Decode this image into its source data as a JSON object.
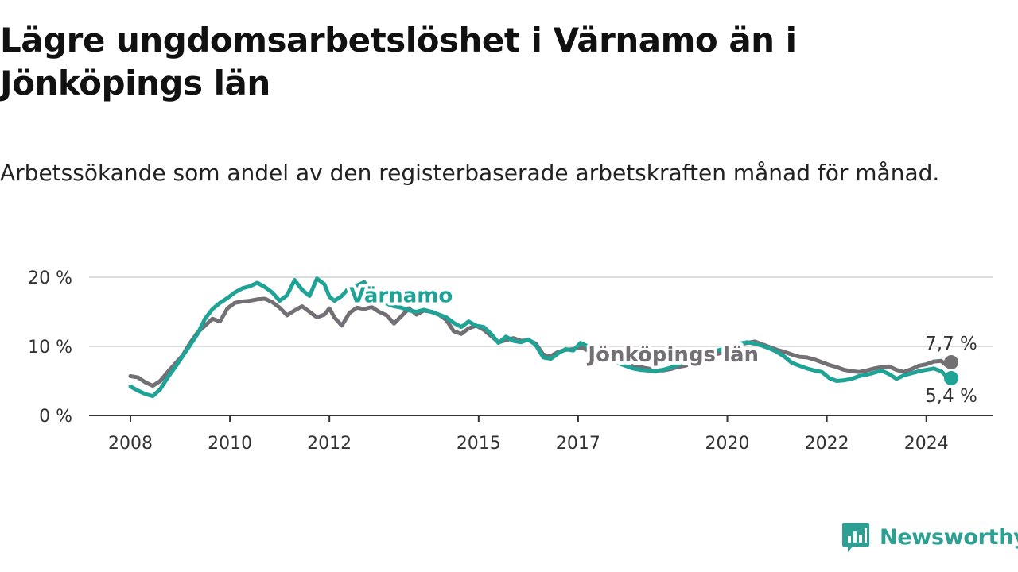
{
  "title": "Lägre ungdomsarbetslöshet i Värnamo än i Jönköpings län",
  "subtitle": "Arbetssökande som andel av den registerbaserade arbetskraften månad för månad.",
  "brand": {
    "name": "Newsworthy",
    "icon": "newsworthy-logo-icon",
    "color": "#2d9f93"
  },
  "chart_data": {
    "type": "line",
    "title": "Lägre ungdomsarbetslöshet i Värnamo än i Jönköpings län",
    "xlabel": "",
    "ylabel": "",
    "xlim": [
      2008,
      2024.5
    ],
    "ylim": [
      0,
      20
    ],
    "grid": true,
    "x_ticks": [
      {
        "value": 2008,
        "label": "2008"
      },
      {
        "value": 2010,
        "label": "2010"
      },
      {
        "value": 2012,
        "label": "2012"
      },
      {
        "value": 2015,
        "label": "2015"
      },
      {
        "value": 2017,
        "label": "2017"
      },
      {
        "value": 2020,
        "label": "2020"
      },
      {
        "value": 2022,
        "label": "2022"
      },
      {
        "value": 2024,
        "label": "2024"
      }
    ],
    "y_ticks": [
      {
        "value": 0,
        "label": "0 %"
      },
      {
        "value": 10,
        "label": "10 %"
      },
      {
        "value": 20,
        "label": "20 %"
      }
    ],
    "series": [
      {
        "name": "Jönköpings län",
        "label": "Jönköpings län",
        "color": "#727075",
        "label_anchor": {
          "x": 2017.2,
          "y": 7.8
        },
        "end_label": "7,7 %",
        "points": [
          [
            2008.0,
            5.7
          ],
          [
            2008.15,
            5.5
          ],
          [
            2008.3,
            4.8
          ],
          [
            2008.45,
            4.3
          ],
          [
            2008.6,
            5.0
          ],
          [
            2008.75,
            6.3
          ],
          [
            2008.9,
            7.5
          ],
          [
            2009.05,
            8.7
          ],
          [
            2009.2,
            10.5
          ],
          [
            2009.35,
            12.0
          ],
          [
            2009.5,
            13.0
          ],
          [
            2009.65,
            14.0
          ],
          [
            2009.8,
            13.6
          ],
          [
            2009.95,
            15.5
          ],
          [
            2010.1,
            16.3
          ],
          [
            2010.25,
            16.5
          ],
          [
            2010.4,
            16.6
          ],
          [
            2010.55,
            16.8
          ],
          [
            2010.7,
            16.9
          ],
          [
            2010.85,
            16.4
          ],
          [
            2011.0,
            15.6
          ],
          [
            2011.15,
            14.5
          ],
          [
            2011.3,
            15.2
          ],
          [
            2011.45,
            15.8
          ],
          [
            2011.6,
            15.0
          ],
          [
            2011.75,
            14.2
          ],
          [
            2011.9,
            14.6
          ],
          [
            2012.0,
            15.5
          ],
          [
            2012.1,
            14.2
          ],
          [
            2012.25,
            13.0
          ],
          [
            2012.4,
            14.8
          ],
          [
            2012.55,
            15.6
          ],
          [
            2012.7,
            15.4
          ],
          [
            2012.85,
            15.7
          ],
          [
            2013.0,
            15.0
          ],
          [
            2013.15,
            14.5
          ],
          [
            2013.3,
            13.3
          ],
          [
            2013.45,
            14.4
          ],
          [
            2013.6,
            15.5
          ],
          [
            2013.75,
            14.6
          ],
          [
            2013.9,
            15.2
          ],
          [
            2014.05,
            15.0
          ],
          [
            2014.2,
            14.6
          ],
          [
            2014.35,
            13.8
          ],
          [
            2014.5,
            12.2
          ],
          [
            2014.65,
            11.8
          ],
          [
            2014.8,
            12.6
          ],
          [
            2014.95,
            13.0
          ],
          [
            2015.1,
            12.4
          ],
          [
            2015.25,
            11.5
          ],
          [
            2015.4,
            10.6
          ],
          [
            2015.55,
            10.9
          ],
          [
            2015.7,
            11.2
          ],
          [
            2015.85,
            10.8
          ],
          [
            2016.0,
            10.9
          ],
          [
            2016.15,
            10.4
          ],
          [
            2016.3,
            8.8
          ],
          [
            2016.45,
            8.6
          ],
          [
            2016.6,
            9.2
          ],
          [
            2016.75,
            9.5
          ],
          [
            2016.9,
            9.6
          ],
          [
            2017.05,
            9.9
          ],
          [
            2017.2,
            9.4
          ],
          [
            2017.35,
            9.2
          ],
          [
            2017.5,
            9.0
          ],
          [
            2017.65,
            8.6
          ],
          [
            2017.8,
            8.2
          ],
          [
            2017.95,
            7.8
          ],
          [
            2018.1,
            7.4
          ],
          [
            2018.25,
            7.0
          ],
          [
            2018.4,
            6.8
          ],
          [
            2018.55,
            6.6
          ],
          [
            2018.7,
            6.5
          ],
          [
            2018.85,
            6.7
          ],
          [
            2019.0,
            7.0
          ],
          [
            2019.15,
            7.2
          ],
          [
            2019.3,
            7.6
          ],
          [
            2019.45,
            8.0
          ],
          [
            2019.6,
            8.4
          ],
          [
            2019.75,
            8.8
          ],
          [
            2019.9,
            9.1
          ],
          [
            2020.1,
            9.6
          ],
          [
            2020.25,
            10.3
          ],
          [
            2020.4,
            10.5
          ],
          [
            2020.55,
            10.7
          ],
          [
            2020.7,
            10.3
          ],
          [
            2020.85,
            9.9
          ],
          [
            2021.0,
            9.5
          ],
          [
            2021.15,
            9.2
          ],
          [
            2021.3,
            8.8
          ],
          [
            2021.45,
            8.5
          ],
          [
            2021.6,
            8.4
          ],
          [
            2021.75,
            8.1
          ],
          [
            2021.9,
            7.7
          ],
          [
            2022.05,
            7.3
          ],
          [
            2022.2,
            7.0
          ],
          [
            2022.35,
            6.6
          ],
          [
            2022.5,
            6.4
          ],
          [
            2022.65,
            6.3
          ],
          [
            2022.8,
            6.5
          ],
          [
            2022.95,
            6.8
          ],
          [
            2023.1,
            7.0
          ],
          [
            2023.25,
            7.1
          ],
          [
            2023.4,
            6.6
          ],
          [
            2023.55,
            6.3
          ],
          [
            2023.7,
            6.7
          ],
          [
            2023.85,
            7.2
          ],
          [
            2024.0,
            7.4
          ],
          [
            2024.15,
            7.8
          ],
          [
            2024.3,
            7.9
          ],
          [
            2024.4,
            7.3
          ],
          [
            2024.5,
            7.7
          ]
        ]
      },
      {
        "name": "Värnamo",
        "label": "Värnamo",
        "color": "#1fa396",
        "label_anchor": {
          "x": 2012.4,
          "y": 16.4
        },
        "end_label": "5,4 %",
        "points": [
          [
            2008.0,
            4.2
          ],
          [
            2008.15,
            3.6
          ],
          [
            2008.3,
            3.1
          ],
          [
            2008.45,
            2.8
          ],
          [
            2008.6,
            3.8
          ],
          [
            2008.75,
            5.5
          ],
          [
            2008.9,
            7.0
          ],
          [
            2009.05,
            8.6
          ],
          [
            2009.2,
            10.2
          ],
          [
            2009.35,
            11.8
          ],
          [
            2009.5,
            14.0
          ],
          [
            2009.65,
            15.4
          ],
          [
            2009.8,
            16.3
          ],
          [
            2009.95,
            17.0
          ],
          [
            2010.1,
            17.8
          ],
          [
            2010.25,
            18.4
          ],
          [
            2010.4,
            18.7
          ],
          [
            2010.55,
            19.2
          ],
          [
            2010.7,
            18.6
          ],
          [
            2010.85,
            17.8
          ],
          [
            2011.0,
            16.6
          ],
          [
            2011.15,
            17.4
          ],
          [
            2011.3,
            19.6
          ],
          [
            2011.45,
            18.2
          ],
          [
            2011.6,
            17.3
          ],
          [
            2011.75,
            19.8
          ],
          [
            2011.9,
            19.0
          ],
          [
            2012.0,
            17.2
          ],
          [
            2012.1,
            16.6
          ],
          [
            2012.25,
            17.3
          ],
          [
            2012.4,
            18.5
          ],
          [
            2012.55,
            18.8
          ],
          [
            2012.7,
            19.3
          ],
          [
            2012.85,
            17.3
          ],
          [
            2013.0,
            17.0
          ],
          [
            2013.15,
            16.2
          ],
          [
            2013.3,
            15.8
          ],
          [
            2013.45,
            15.6
          ],
          [
            2013.6,
            15.2
          ],
          [
            2013.75,
            15.0
          ],
          [
            2013.9,
            15.3
          ],
          [
            2014.05,
            15.0
          ],
          [
            2014.2,
            14.6
          ],
          [
            2014.35,
            14.2
          ],
          [
            2014.5,
            13.4
          ],
          [
            2014.65,
            12.8
          ],
          [
            2014.8,
            13.6
          ],
          [
            2014.95,
            13.0
          ],
          [
            2015.1,
            12.8
          ],
          [
            2015.25,
            11.8
          ],
          [
            2015.4,
            10.5
          ],
          [
            2015.55,
            11.4
          ],
          [
            2015.7,
            10.8
          ],
          [
            2015.85,
            10.6
          ],
          [
            2016.0,
            11.0
          ],
          [
            2016.15,
            10.2
          ],
          [
            2016.3,
            8.4
          ],
          [
            2016.45,
            8.2
          ],
          [
            2016.6,
            9.0
          ],
          [
            2016.75,
            9.6
          ],
          [
            2016.9,
            9.4
          ],
          [
            2017.05,
            10.5
          ],
          [
            2017.2,
            10.0
          ],
          [
            2017.35,
            9.3
          ],
          [
            2017.5,
            8.6
          ],
          [
            2017.65,
            8.2
          ],
          [
            2017.8,
            7.6
          ],
          [
            2017.95,
            7.2
          ],
          [
            2018.1,
            6.8
          ],
          [
            2018.25,
            6.6
          ],
          [
            2018.4,
            6.5
          ],
          [
            2018.55,
            6.4
          ],
          [
            2018.7,
            6.6
          ],
          [
            2018.85,
            6.9
          ],
          [
            2019.0,
            7.3
          ],
          [
            2019.15,
            7.8
          ],
          [
            2019.3,
            8.3
          ],
          [
            2019.45,
            8.7
          ],
          [
            2019.6,
            9.0
          ],
          [
            2019.75,
            9.3
          ],
          [
            2019.9,
            9.6
          ],
          [
            2020.1,
            9.8
          ],
          [
            2020.25,
            10.4
          ],
          [
            2020.4,
            10.6
          ],
          [
            2020.55,
            10.4
          ],
          [
            2020.7,
            10.1
          ],
          [
            2020.85,
            9.7
          ],
          [
            2021.0,
            9.2
          ],
          [
            2021.15,
            8.5
          ],
          [
            2021.3,
            7.6
          ],
          [
            2021.45,
            7.2
          ],
          [
            2021.6,
            6.8
          ],
          [
            2021.75,
            6.5
          ],
          [
            2021.9,
            6.3
          ],
          [
            2022.05,
            5.4
          ],
          [
            2022.2,
            5.0
          ],
          [
            2022.35,
            5.1
          ],
          [
            2022.5,
            5.3
          ],
          [
            2022.65,
            5.7
          ],
          [
            2022.8,
            5.9
          ],
          [
            2022.95,
            6.2
          ],
          [
            2023.1,
            6.5
          ],
          [
            2023.25,
            6.0
          ],
          [
            2023.4,
            5.3
          ],
          [
            2023.55,
            5.8
          ],
          [
            2023.7,
            6.1
          ],
          [
            2023.85,
            6.4
          ],
          [
            2024.0,
            6.6
          ],
          [
            2024.15,
            6.8
          ],
          [
            2024.3,
            6.4
          ],
          [
            2024.4,
            5.7
          ],
          [
            2024.5,
            5.4
          ]
        ]
      }
    ]
  }
}
